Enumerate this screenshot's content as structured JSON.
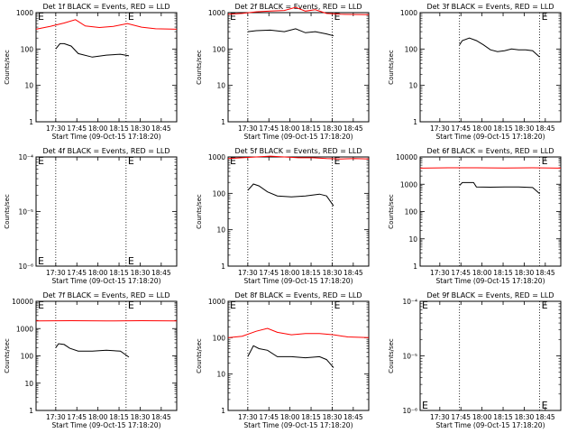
{
  "time_axis": {
    "start_min": 0,
    "end_min": 100,
    "ticks": [
      {
        "t": 14,
        "label": "17:30"
      },
      {
        "t": 29,
        "label": "17:45"
      },
      {
        "t": 44,
        "label": "18:00"
      },
      {
        "t": 59,
        "label": "18:15"
      },
      {
        "t": 74,
        "label": "18:30"
      },
      {
        "t": 89,
        "label": "18:45"
      }
    ],
    "xlabel": "Start Time (09-Oct-15 17:18:20)"
  },
  "colors": {
    "events": "#000000",
    "lld": "#ff0000"
  },
  "chart_data": [
    {
      "type": "line",
      "title": "Det 1f BLACK = Events, RED = LLD",
      "ylabel": "Counts/sec",
      "y_scale": "log",
      "ylim": [
        1,
        1000
      ],
      "y_ticks": [
        {
          "v": 1,
          "label": "1"
        },
        {
          "v": 10,
          "label": "10"
        },
        {
          "v": 100,
          "label": "100"
        },
        {
          "v": 1000,
          "label": "1000"
        }
      ],
      "markers": [
        {
          "t": 14
        },
        {
          "t": 64
        }
      ],
      "marker_labels": [
        {
          "t": 0,
          "label": "E"
        },
        {
          "t": 64,
          "label": "E"
        }
      ],
      "series": [
        {
          "color": "red",
          "x": [
            0,
            10,
            20,
            28,
            35,
            45,
            55,
            65,
            75,
            85,
            100
          ],
          "y": [
            350,
            420,
            520,
            640,
            430,
            390,
            420,
            500,
            400,
            360,
            350
          ]
        },
        {
          "color": "black",
          "x": [
            14,
            17,
            20,
            25,
            30,
            40,
            50,
            60,
            66
          ],
          "y": [
            100,
            140,
            140,
            120,
            75,
            60,
            68,
            72,
            65
          ]
        }
      ]
    },
    {
      "type": "line",
      "title": "Det 2f BLACK = Events, RED = LLD",
      "ylabel": "Counts/sec",
      "y_scale": "log",
      "ylim": [
        1,
        1000
      ],
      "y_ticks": [
        {
          "v": 1,
          "label": "1"
        },
        {
          "v": 10,
          "label": "10"
        },
        {
          "v": 100,
          "label": "100"
        },
        {
          "v": 1000,
          "label": "1000"
        }
      ],
      "markers": [
        {
          "t": 14
        },
        {
          "t": 74
        }
      ],
      "marker_labels": [
        {
          "t": 0,
          "label": "E"
        },
        {
          "t": 74,
          "label": "E"
        }
      ],
      "series": [
        {
          "color": "red",
          "x": [
            0,
            10,
            20,
            30,
            40,
            48,
            55,
            62,
            70,
            80,
            100
          ],
          "y": [
            900,
            950,
            1050,
            1100,
            1150,
            1400,
            1100,
            1200,
            950,
            900,
            880
          ]
        },
        {
          "color": "black",
          "x": [
            14,
            20,
            30,
            40,
            48,
            55,
            62,
            70,
            75
          ],
          "y": [
            300,
            320,
            330,
            300,
            360,
            280,
            300,
            260,
            230
          ]
        }
      ]
    },
    {
      "type": "line",
      "title": "Det 3f BLACK = Events, RED = LLD",
      "ylabel": "Counts/sec",
      "y_scale": "log",
      "ylim": [
        1,
        1000
      ],
      "y_ticks": [
        {
          "v": 1,
          "label": "1"
        },
        {
          "v": 10,
          "label": "10"
        },
        {
          "v": 100,
          "label": "100"
        },
        {
          "v": 1000,
          "label": "1000"
        }
      ],
      "markers": [
        {
          "t": 28
        },
        {
          "t": 85
        }
      ],
      "marker_labels": [
        {
          "t": 85,
          "label": "E"
        }
      ],
      "series": [
        {
          "color": "black",
          "x": [
            28,
            30,
            35,
            40,
            45,
            50,
            55,
            60,
            65,
            70,
            75,
            80,
            85
          ],
          "y": [
            130,
            170,
            200,
            170,
            130,
            95,
            85,
            90,
            100,
            95,
            95,
            90,
            60
          ]
        }
      ]
    },
    {
      "type": "line",
      "title": "Det 4f BLACK = Events, RED = LLD",
      "ylabel": "Counts/sec",
      "y_scale": "log",
      "ylim": [
        1e-06,
        0.0001
      ],
      "y_ticks": [
        {
          "v": 1e-06,
          "label": "10⁻⁶"
        },
        {
          "v": 1e-05,
          "label": "10⁻⁵"
        },
        {
          "v": 0.0001,
          "label": "10⁻⁴"
        }
      ],
      "markers": [
        {
          "t": 14
        },
        {
          "t": 64
        }
      ],
      "marker_labels": [
        {
          "t": 0,
          "label": "E"
        },
        {
          "t": 64,
          "label": "E"
        }
      ],
      "series": []
    },
    {
      "type": "line",
      "title": "Det 5f BLACK = Events, RED = LLD",
      "ylabel": "Counts/sec",
      "y_scale": "log",
      "ylim": [
        1,
        1000
      ],
      "y_ticks": [
        {
          "v": 1,
          "label": "1"
        },
        {
          "v": 10,
          "label": "10"
        },
        {
          "v": 100,
          "label": "100"
        },
        {
          "v": 1000,
          "label": "1000"
        }
      ],
      "markers": [
        {
          "t": 14
        },
        {
          "t": 74
        }
      ],
      "marker_labels": [
        {
          "t": 0,
          "label": "E"
        },
        {
          "t": 74,
          "label": "E"
        }
      ],
      "series": [
        {
          "color": "red",
          "x": [
            0,
            10,
            20,
            30,
            40,
            50,
            60,
            70,
            80,
            90,
            100
          ],
          "y": [
            900,
            950,
            1000,
            1050,
            1000,
            950,
            950,
            900,
            880,
            900,
            880
          ]
        },
        {
          "color": "black",
          "x": [
            14,
            18,
            22,
            28,
            35,
            45,
            55,
            65,
            70,
            75
          ],
          "y": [
            120,
            180,
            160,
            110,
            85,
            80,
            85,
            95,
            85,
            45
          ]
        }
      ]
    },
    {
      "type": "line",
      "title": "Det 6f BLACK = Events, RED = LLD",
      "ylabel": "Counts/sec",
      "y_scale": "log",
      "ylim": [
        1,
        10000
      ],
      "y_ticks": [
        {
          "v": 1,
          "label": "1"
        },
        {
          "v": 10,
          "label": "10"
        },
        {
          "v": 100,
          "label": "100"
        },
        {
          "v": 1000,
          "label": "1000"
        },
        {
          "v": 10000,
          "label": "10000"
        }
      ],
      "markers": [
        {
          "t": 28
        },
        {
          "t": 85
        }
      ],
      "marker_labels": [
        {
          "t": 85,
          "label": "E"
        }
      ],
      "series": [
        {
          "color": "red",
          "x": [
            0,
            20,
            40,
            60,
            80,
            100
          ],
          "y": [
            3900,
            4000,
            4000,
            3950,
            4000,
            3900
          ]
        },
        {
          "color": "black",
          "x": [
            28,
            30,
            38,
            40,
            50,
            60,
            70,
            80,
            85
          ],
          "y": [
            900,
            1150,
            1150,
            800,
            780,
            790,
            800,
            760,
            450
          ]
        }
      ]
    },
    {
      "type": "line",
      "title": "Det 7f BLACK = Events, RED = LLD",
      "ylabel": "Counts/sec",
      "y_scale": "log",
      "ylim": [
        1,
        10000
      ],
      "y_ticks": [
        {
          "v": 1,
          "label": "1"
        },
        {
          "v": 10,
          "label": "10"
        },
        {
          "v": 100,
          "label": "100"
        },
        {
          "v": 1000,
          "label": "1000"
        },
        {
          "v": 10000,
          "label": "10000"
        }
      ],
      "markers": [
        {
          "t": 14
        },
        {
          "t": 64
        }
      ],
      "marker_labels": [
        {
          "t": 0,
          "label": "E"
        },
        {
          "t": 64,
          "label": "E"
        }
      ],
      "series": [
        {
          "color": "red",
          "x": [
            0,
            25,
            50,
            75,
            100
          ],
          "y": [
            1900,
            1950,
            1900,
            1950,
            1900
          ]
        },
        {
          "color": "black",
          "x": [
            14,
            16,
            20,
            24,
            30,
            40,
            50,
            60,
            66
          ],
          "y": [
            200,
            280,
            260,
            190,
            150,
            150,
            160,
            150,
            90
          ]
        }
      ]
    },
    {
      "type": "line",
      "title": "Det 8f BLACK = Events, RED = LLD",
      "ylabel": "Counts/sec",
      "y_scale": "log",
      "ylim": [
        1,
        1000
      ],
      "y_ticks": [
        {
          "v": 1,
          "label": "1"
        },
        {
          "v": 10,
          "label": "10"
        },
        {
          "v": 100,
          "label": "100"
        },
        {
          "v": 1000,
          "label": "1000"
        }
      ],
      "markers": [
        {
          "t": 14
        },
        {
          "t": 74
        }
      ],
      "marker_labels": [
        {
          "t": 0,
          "label": "E"
        },
        {
          "t": 74,
          "label": "E"
        }
      ],
      "series": [
        {
          "color": "red",
          "x": [
            0,
            10,
            20,
            28,
            35,
            45,
            55,
            65,
            75,
            85,
            100
          ],
          "y": [
            100,
            110,
            150,
            180,
            140,
            120,
            130,
            130,
            120,
            105,
            100
          ]
        },
        {
          "color": "black",
          "x": [
            14,
            18,
            22,
            28,
            35,
            45,
            55,
            65,
            70,
            75
          ],
          "y": [
            30,
            60,
            50,
            45,
            30,
            30,
            28,
            30,
            25,
            15
          ]
        }
      ]
    },
    {
      "type": "line",
      "title": "Det 9f BLACK = Events, RED = LLD",
      "ylabel": "Counts/sec",
      "y_scale": "log",
      "ylim": [
        1e-06,
        0.0001
      ],
      "y_ticks": [
        {
          "v": 1e-06,
          "label": "10⁻⁶"
        },
        {
          "v": 1e-05,
          "label": "10⁻⁵"
        },
        {
          "v": 0.0001,
          "label": "10⁻⁴"
        }
      ],
      "markers": [
        {
          "t": 28
        },
        {
          "t": 85
        }
      ],
      "marker_labels": [
        {
          "t": 0,
          "label": "E"
        },
        {
          "t": 85,
          "label": "E"
        }
      ],
      "series": []
    }
  ]
}
